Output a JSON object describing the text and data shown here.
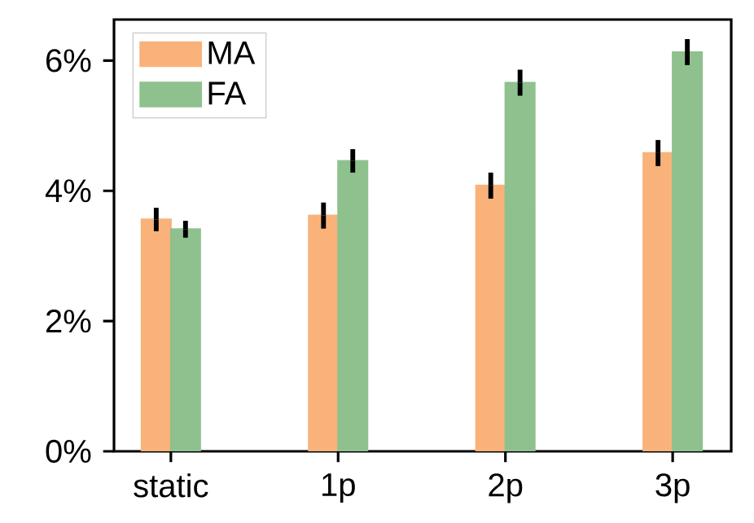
{
  "chart_data": {
    "type": "bar",
    "categories": [
      "static",
      "1p",
      "2p",
      "3p"
    ],
    "series": [
      {
        "name": "MA",
        "color": "#f9b27a",
        "values": [
          3.56,
          3.62,
          4.08,
          4.58
        ],
        "errors": [
          0.18,
          0.2,
          0.2,
          0.2
        ]
      },
      {
        "name": "FA",
        "color": "#8fc18f",
        "values": [
          3.41,
          4.46,
          5.66,
          6.13
        ],
        "errors": [
          0.13,
          0.18,
          0.2,
          0.2
        ]
      }
    ],
    "ylim": [
      0,
      6.63
    ],
    "yticks": [
      {
        "value": 0,
        "label": "0%"
      },
      {
        "value": 2,
        "label": "2%"
      },
      {
        "value": 4,
        "label": "4%"
      },
      {
        "value": 6,
        "label": "6%"
      }
    ],
    "legend": "top left",
    "grid": false
  }
}
